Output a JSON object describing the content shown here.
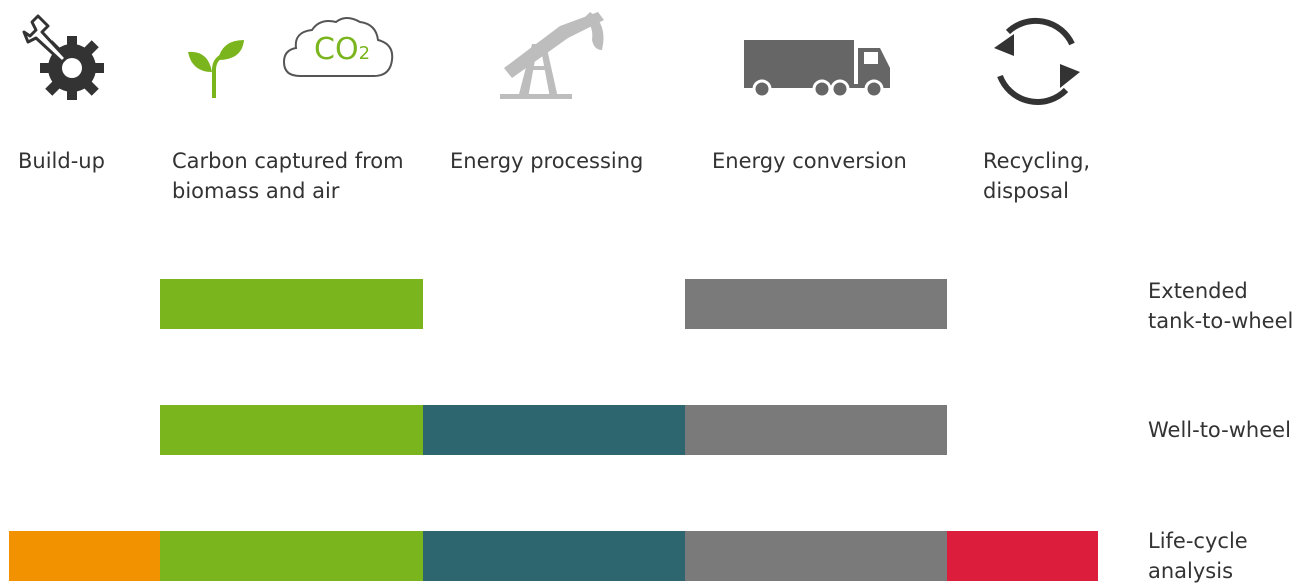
{
  "stages": [
    {
      "label": "Build-up",
      "icon": "gear-wrench-icon",
      "color": "#f39200"
    },
    {
      "label": "Carbon captured from\nbiomass and air",
      "icon": "sprout-co2-cloud-icon",
      "color": "#7ab51d"
    },
    {
      "label": "Energy processing",
      "icon": "oil-pump-icon",
      "color": "#2e6670"
    },
    {
      "label": "Energy conversion",
      "icon": "truck-icon",
      "color": "#7a7a7a"
    },
    {
      "label": "Recycling,\ndisposal",
      "icon": "recycle-arrows-icon",
      "color": "#dc1e3c"
    }
  ],
  "co2_text": "CO",
  "co2_sub": "2",
  "rows": [
    {
      "label": "Extended\ntank-to-wheel",
      "segments": [
        1,
        3
      ]
    },
    {
      "label": "Well-to-wheel",
      "segments": [
        1,
        2,
        3
      ]
    },
    {
      "label": "Life-cycle\nanalysis",
      "segments": [
        0,
        1,
        2,
        3,
        4
      ]
    }
  ]
}
